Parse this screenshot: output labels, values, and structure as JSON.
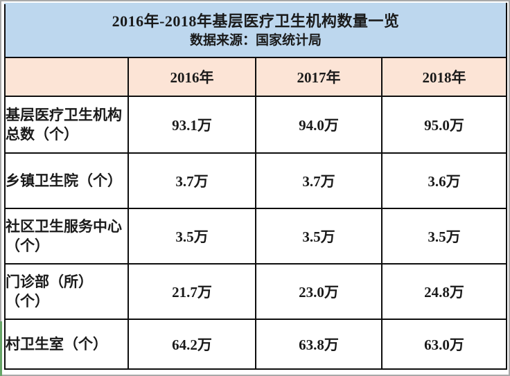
{
  "header": {
    "title": "2016年-2018年基层医疗卫生机构数量一览",
    "subtitle": "数据来源：国家统计局"
  },
  "table": {
    "columns": [
      "",
      "2016年",
      "2017年",
      "2018年"
    ],
    "rows": [
      {
        "label": "基层医疗卫生机构\n总数（个）",
        "values": [
          "93.1万",
          "94.0万",
          "95.0万"
        ]
      },
      {
        "label": "乡镇卫生院（个）",
        "values": [
          "3.7万",
          "3.7万",
          "3.6万"
        ]
      },
      {
        "label": "社区卫生服务中心\n（个）",
        "values": [
          "3.5万",
          "3.5万",
          "3.5万"
        ]
      },
      {
        "label": "门诊部（所）\n（个）",
        "values": [
          "21.7万",
          "23.0万",
          "24.8万"
        ]
      },
      {
        "label": "村卫生室（个）",
        "values": [
          "64.2万",
          "63.8万",
          "63.0万"
        ]
      }
    ]
  },
  "colors": {
    "title_band": "#bdd7ee",
    "column_header_band": "#fce4d6",
    "table_border": "#0d0d0d",
    "outer_frame": "#a8a8a8",
    "edge_artifact_green": "#67a567",
    "text": "#1a1a1a"
  },
  "chart_data": {
    "type": "table",
    "title": "2016年-2018年基层医疗卫生机构数量一览",
    "source": "数据来源：国家统计局",
    "columns": [
      "2016年",
      "2017年",
      "2018年"
    ],
    "unit": "万",
    "rows": [
      {
        "label": "基层医疗卫生机构总数（个）",
        "values": [
          93.1,
          94.0,
          95.0
        ]
      },
      {
        "label": "乡镇卫生院（个）",
        "values": [
          3.7,
          3.7,
          3.6
        ]
      },
      {
        "label": "社区卫生服务中心（个）",
        "values": [
          3.5,
          3.5,
          3.5
        ]
      },
      {
        "label": "门诊部（所）（个）",
        "values": [
          21.7,
          23.0,
          24.8
        ]
      },
      {
        "label": "村卫生室（个）",
        "values": [
          64.2,
          63.8,
          63.0
        ]
      }
    ]
  }
}
